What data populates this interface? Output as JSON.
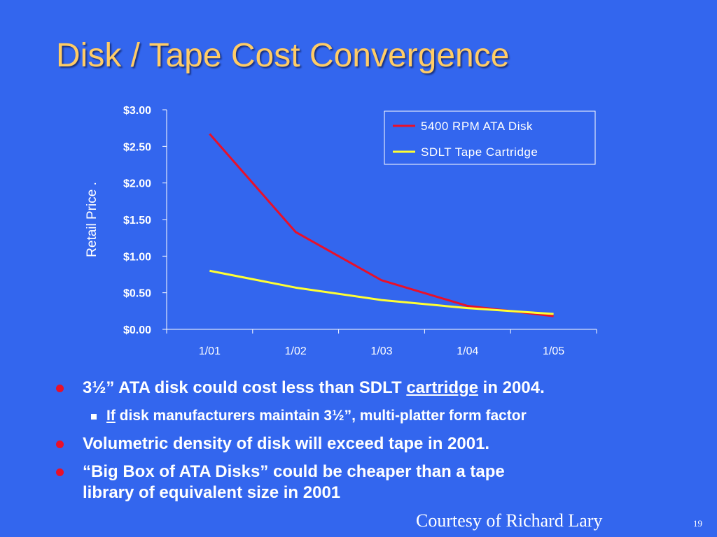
{
  "slide": {
    "title": "Disk / Tape Cost Convergence",
    "credit": "Courtesy of Richard Lary",
    "page_number": "19"
  },
  "bullets": [
    {
      "level": 1,
      "parts": [
        {
          "text": "3½” ATA disk could cost less than SDLT ",
          "underline": false
        },
        {
          "text": "cartridge",
          "underline": true
        },
        {
          "text": " in 2004.",
          "underline": false
        }
      ]
    },
    {
      "level": 2,
      "parts": [
        {
          "text": "If",
          "underline": true
        },
        {
          "text": " disk manufacturers maintain 3½”, multi-platter form factor",
          "underline": false
        }
      ]
    },
    {
      "level": 1,
      "parts": [
        {
          "text": "Volumetric density of disk will exceed tape in 2001.",
          "underline": false
        }
      ]
    },
    {
      "level": 1,
      "lines": [
        "“Big Box of ATA Disks” could be cheaper than a tape",
        "library of equivalent size in 2001"
      ]
    }
  ],
  "colors": {
    "background": "#3366ee",
    "title": "#ffcc66",
    "disk_series": "#e8102a",
    "tape_series": "#ffff33",
    "bullet_dot": "#e8102a"
  },
  "chart_data": {
    "type": "line",
    "title": "",
    "xlabel": "",
    "ylabel": "Retail Price .",
    "categories": [
      "1/01",
      "1/02",
      "1/03",
      "1/04",
      "1/05"
    ],
    "series": [
      {
        "name": "5400 RPM ATA Disk",
        "values": [
          2.67,
          1.33,
          0.67,
          0.32,
          0.18
        ]
      },
      {
        "name": "SDLT Tape Cartridge",
        "values": [
          0.8,
          0.57,
          0.4,
          0.29,
          0.21
        ]
      }
    ],
    "ylim": [
      0,
      3
    ],
    "yticks": [
      0,
      0.5,
      1,
      1.5,
      2,
      2.5,
      3
    ],
    "ytick_labels": [
      "$0.00",
      "$0.50",
      "$1.00",
      "$1.50",
      "$2.00",
      "$2.50",
      "$3.00"
    ],
    "grid": false,
    "legend_position": "top-right"
  }
}
